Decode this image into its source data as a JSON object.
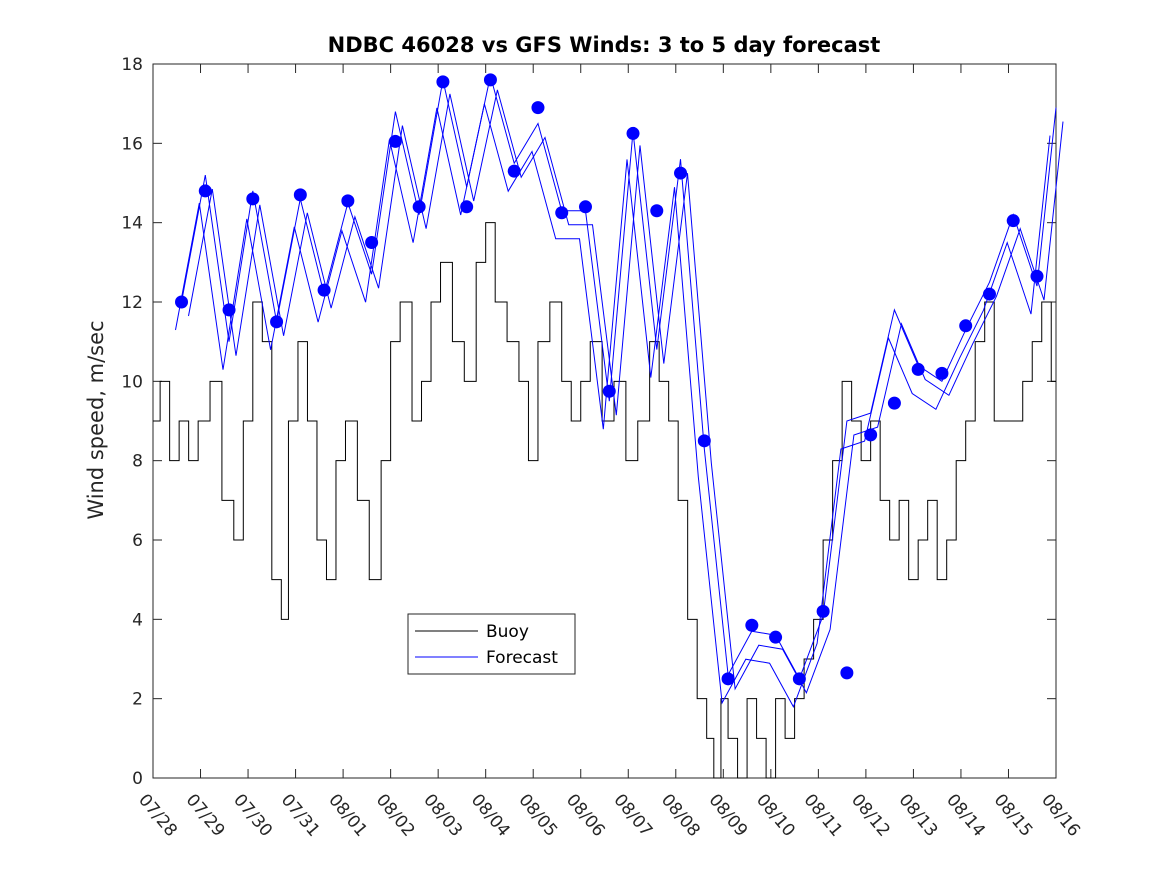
{
  "chart_data": {
    "type": "line",
    "title": "NDBC 46028 vs GFS Winds: 3 to 5 day forecast",
    "xlabel": "",
    "ylabel": "Wind speed, m/sec",
    "ylim": [
      0,
      18
    ],
    "xlim": [
      0,
      19
    ],
    "x_units": "days since 07/28",
    "yticks": [
      "0",
      "2",
      "4",
      "6",
      "8",
      "10",
      "12",
      "14",
      "16",
      "18"
    ],
    "xticks": [
      "07/28",
      "07/29",
      "07/30",
      "07/31",
      "08/01",
      "08/02",
      "08/03",
      "08/04",
      "08/05",
      "08/06",
      "08/07",
      "08/08",
      "08/09",
      "08/10",
      "08/11",
      "08/12",
      "08/13",
      "08/14",
      "08/15",
      "08/16"
    ],
    "legend": {
      "placement": "lower-left",
      "entries": [
        "Buoy",
        "Forecast"
      ]
    },
    "colors": {
      "buoy": "#000000",
      "forecast": "#0000ff"
    },
    "series": [
      {
        "name": "Buoy",
        "x": [
          0.0,
          0.15,
          0.35,
          0.55,
          0.75,
          0.95,
          1.2,
          1.45,
          1.7,
          1.9,
          2.1,
          2.3,
          2.5,
          2.7,
          2.85,
          3.05,
          3.25,
          3.45,
          3.65,
          3.85,
          4.05,
          4.3,
          4.55,
          4.8,
          5.0,
          5.2,
          5.45,
          5.65,
          5.85,
          6.05,
          6.3,
          6.55,
          6.8,
          7.0,
          7.2,
          7.45,
          7.7,
          7.9,
          8.1,
          8.35,
          8.6,
          8.8,
          9.0,
          9.2,
          9.45,
          9.7,
          9.95,
          10.2,
          10.45,
          10.65,
          10.85,
          11.05,
          11.25,
          11.45,
          11.65,
          11.8,
          11.95,
          12.1,
          12.3,
          12.5,
          12.7,
          12.9,
          13.1,
          13.3,
          13.5,
          13.7,
          13.9,
          14.1,
          14.3,
          14.5,
          14.7,
          14.9,
          15.1,
          15.3,
          15.5,
          15.7,
          15.9,
          16.1,
          16.3,
          16.5,
          16.7,
          16.9,
          17.1,
          17.3,
          17.5,
          17.7,
          17.9,
          18.1,
          18.3,
          18.5,
          18.7,
          18.9,
          19.0
        ],
        "values": [
          9,
          10,
          8,
          9,
          8,
          9,
          10,
          7,
          6,
          9,
          12,
          11,
          5,
          4,
          9,
          11,
          9,
          6,
          5,
          8,
          9,
          7,
          5,
          8,
          11,
          12,
          9,
          10,
          12,
          13,
          11,
          10,
          13,
          14,
          12,
          11,
          10,
          8,
          11,
          12,
          10,
          9,
          10,
          11,
          9,
          10,
          8,
          9,
          11,
          10,
          9,
          7,
          4,
          2,
          1,
          0,
          2,
          1,
          0,
          2,
          1,
          0,
          2,
          1,
          2,
          3,
          4,
          6,
          8,
          10,
          9,
          8,
          9,
          7,
          6,
          7,
          5,
          6,
          7,
          5,
          6,
          8,
          9,
          11,
          12,
          9,
          9,
          9,
          10,
          11,
          12,
          10,
          10
        ]
      },
      {
        "name": "Forecast",
        "x": [
          0.6,
          1.1,
          1.6,
          2.1,
          2.6,
          3.1,
          3.6,
          4.1,
          4.6,
          5.1,
          5.6,
          6.1,
          6.6,
          7.1,
          7.6,
          8.1,
          8.6,
          9.1,
          9.6,
          10.1,
          10.6,
          11.1,
          11.6,
          12.1,
          12.6,
          13.1,
          13.6,
          14.1,
          14.6,
          15.1,
          15.6,
          16.1,
          16.6,
          17.1,
          17.6,
          18.1,
          18.6,
          19.0
        ],
        "values": [
          12.0,
          15.2,
          11.0,
          14.8,
          11.5,
          14.6,
          12.2,
          14.5,
          12.7,
          16.8,
          14.2,
          17.6,
          14.9,
          17.7,
          15.5,
          16.5,
          14.3,
          14.3,
          9.5,
          16.3,
          10.8,
          15.6,
          8.3,
          2.6,
          3.7,
          3.6,
          2.5,
          4.1,
          9.0,
          9.2,
          11.8,
          10.4,
          10.0,
          11.3,
          12.5,
          14.2,
          12.4,
          16.9
        ]
      }
    ],
    "markers": {
      "name": "Forecast points",
      "x": [
        0.6,
        1.1,
        1.6,
        2.1,
        2.6,
        3.1,
        3.6,
        4.1,
        4.6,
        5.1,
        5.6,
        6.1,
        6.6,
        7.1,
        7.6,
        8.1,
        8.6,
        9.1,
        9.6,
        10.1,
        10.6,
        11.1,
        11.6,
        12.1,
        12.6,
        13.1,
        13.6,
        14.1,
        14.6,
        15.1,
        15.6,
        16.1,
        16.6,
        17.1,
        17.6,
        18.1,
        18.6
      ],
      "values": [
        12.0,
        14.8,
        11.8,
        14.6,
        11.5,
        14.7,
        12.3,
        14.55,
        13.5,
        16.05,
        14.4,
        17.55,
        14.4,
        17.6,
        15.3,
        16.9,
        14.25,
        14.4,
        9.75,
        16.25,
        14.3,
        15.25,
        8.5,
        2.5,
        3.85,
        3.55,
        2.5,
        4.2,
        2.65,
        8.65,
        9.45,
        10.3,
        10.2,
        11.4,
        12.2,
        14.05,
        12.65
      ]
    }
  }
}
